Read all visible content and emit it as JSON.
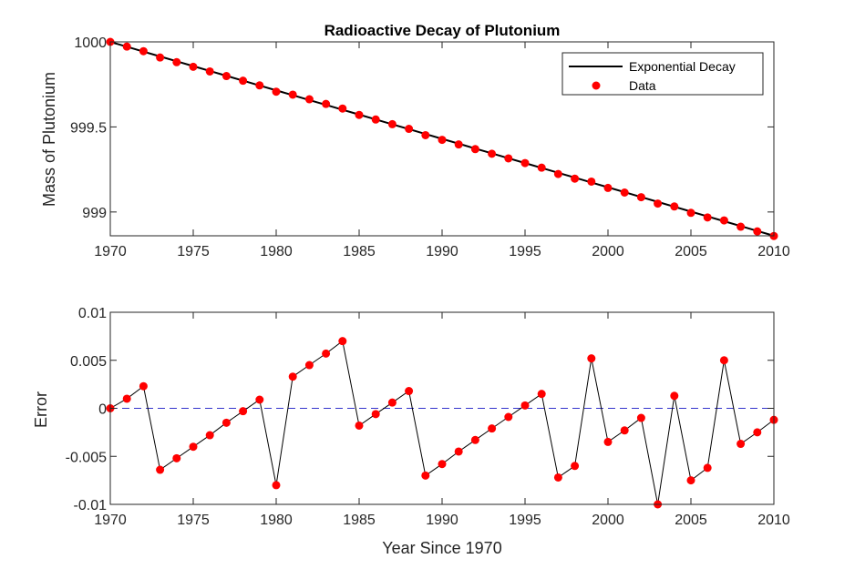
{
  "colors": {
    "model_line": "#000000",
    "data_marker": "#ff0000",
    "error_line": "#000000",
    "zero_line": "#3333cc",
    "axis": "#262626",
    "background": "#ffffff"
  },
  "chart_data": [
    {
      "type": "line",
      "title": "Radioactive Decay of Plutonium",
      "xlabel": "",
      "ylabel": "Mass of Plutonium",
      "xlim": [
        1970,
        2010
      ],
      "ylim": [
        998.86,
        1000
      ],
      "xticks": [
        "1970",
        "1975",
        "1980",
        "1985",
        "1990",
        "1995",
        "2000",
        "2005",
        "2010"
      ],
      "yticks": [
        "999",
        "999.5",
        "1000"
      ],
      "grid": false,
      "legend_position": "top-right",
      "x": [
        1970,
        1971,
        1972,
        1973,
        1974,
        1975,
        1976,
        1977,
        1978,
        1979,
        1980,
        1981,
        1982,
        1983,
        1984,
        1985,
        1986,
        1987,
        1988,
        1989,
        1990,
        1991,
        1992,
        1993,
        1994,
        1995,
        1996,
        1997,
        1998,
        1999,
        2000,
        2001,
        2002,
        2003,
        2004,
        2005,
        2006,
        2007,
        2008,
        2009,
        2010
      ],
      "series": [
        {
          "name": "Exponential Decay",
          "style": "line",
          "values": [
            1000.0,
            999.9715,
            999.943,
            999.9145,
            999.886,
            999.8575,
            999.829,
            999.8005,
            999.772,
            999.7435,
            999.715,
            999.6865,
            999.658,
            999.6295,
            999.601,
            999.5725,
            999.544,
            999.5155,
            999.487,
            999.4585,
            999.43,
            999.4015,
            999.373,
            999.3445,
            999.316,
            999.2875,
            999.259,
            999.2305,
            999.202,
            999.1735,
            999.145,
            999.1165,
            999.088,
            999.0595,
            999.031,
            999.0025,
            998.974,
            998.9455,
            998.917,
            998.8885,
            998.86
          ]
        },
        {
          "name": "Data",
          "style": "markers",
          "values": [
            1000.0,
            999.9725,
            999.9453,
            999.9081,
            999.8808,
            999.8535,
            999.8262,
            999.799,
            999.7717,
            999.7444,
            999.707,
            999.6898,
            999.6625,
            999.6352,
            999.608,
            999.5707,
            999.5434,
            999.5161,
            999.4888,
            999.4515,
            999.4242,
            999.397,
            999.3697,
            999.3424,
            999.3151,
            999.2878,
            999.2605,
            999.2233,
            999.196,
            999.1787,
            999.1415,
            999.1142,
            999.087,
            999.0495,
            999.0323,
            998.995,
            998.9678,
            998.9505,
            998.9133,
            998.886,
            998.8588
          ]
        }
      ]
    },
    {
      "type": "line",
      "title": "",
      "xlabel": "Year Since 1970",
      "ylabel": "Error",
      "xlim": [
        1970,
        2010
      ],
      "ylim": [
        -0.01,
        0.01
      ],
      "xticks": [
        "1970",
        "1975",
        "1980",
        "1985",
        "1990",
        "1995",
        "2000",
        "2005",
        "2010"
      ],
      "yticks": [
        "-0.01",
        "-0.005",
        "0",
        "0.005",
        "0.01"
      ],
      "grid": false,
      "reference_line": 0,
      "x": [
        1970,
        1971,
        1972,
        1973,
        1974,
        1975,
        1976,
        1977,
        1978,
        1979,
        1980,
        1981,
        1982,
        1983,
        1984,
        1985,
        1986,
        1987,
        1988,
        1989,
        1990,
        1991,
        1992,
        1993,
        1994,
        1995,
        1996,
        1997,
        1998,
        1999,
        2000,
        2001,
        2002,
        2003,
        2004,
        2005,
        2006,
        2007,
        2008,
        2009,
        2010
      ],
      "values": [
        0.0,
        0.001,
        0.0023,
        -0.0064,
        -0.0052,
        -0.004,
        -0.0028,
        -0.0015,
        -0.0003,
        0.0009,
        -0.008,
        0.0033,
        0.0045,
        0.0057,
        0.007,
        -0.0018,
        -0.0006,
        0.0006,
        0.0018,
        -0.007,
        -0.0058,
        -0.0045,
        -0.0033,
        -0.0021,
        -0.0009,
        0.0003,
        0.0015,
        -0.0072,
        -0.006,
        0.0052,
        -0.0035,
        -0.0023,
        -0.001,
        -0.01,
        0.0013,
        -0.0075,
        -0.0062,
        0.005,
        -0.0037,
        -0.0025,
        -0.0012
      ]
    }
  ]
}
